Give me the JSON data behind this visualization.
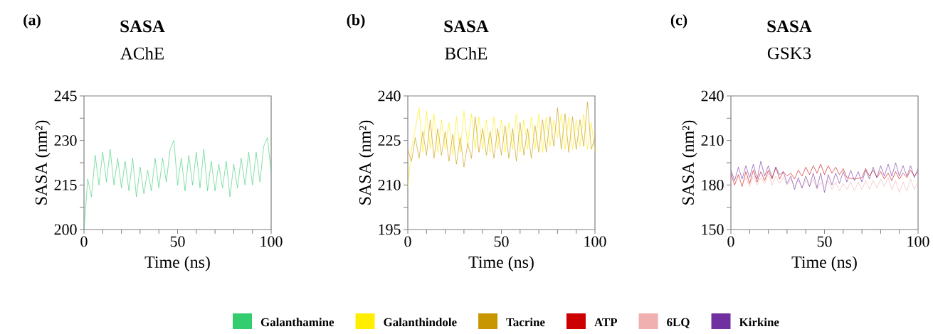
{
  "chart_data": [
    {
      "type": "line",
      "title": "SASA",
      "subtitle": "AChE",
      "annotations": [
        "(a)"
      ],
      "xlabel": "Time (ns)",
      "ylabel": "SASA (nm²)",
      "legend": "bottom",
      "x": [
        0,
        2,
        4,
        6,
        8,
        10,
        12,
        14,
        16,
        18,
        20,
        22,
        24,
        26,
        28,
        30,
        32,
        34,
        36,
        38,
        40,
        42,
        44,
        46,
        48,
        50,
        52,
        54,
        56,
        58,
        60,
        62,
        64,
        66,
        68,
        70,
        72,
        74,
        76,
        78,
        80,
        82,
        84,
        86,
        88,
        90,
        92,
        94,
        96,
        98,
        100
      ],
      "xlim": [
        0,
        100
      ],
      "ylim": [
        200,
        245
      ],
      "xticks": [
        0,
        {
          "value": 10,
          "label": null
        },
        {
          "value": 20,
          "label": null
        },
        {
          "value": 30,
          "label": null
        },
        {
          "value": 40,
          "label": null
        },
        50,
        {
          "value": 60,
          "label": null
        },
        {
          "value": 70,
          "label": null
        },
        {
          "value": 80,
          "label": null
        },
        {
          "value": 90,
          "label": null
        },
        100
      ],
      "yticks": [
        200,
        {
          "value": 207.5,
          "label": null
        },
        215,
        {
          "value": 222.5,
          "label": null
        },
        230,
        {
          "value": 237.5,
          "label": null
        },
        245
      ],
      "series": [
        {
          "name": "Galanthamine",
          "color": "#33cc6e",
          "values": [
            200,
            217,
            211,
            225,
            215,
            226,
            216,
            227,
            215,
            224,
            214,
            223,
            213,
            224,
            211,
            221,
            212,
            220,
            213,
            224,
            214,
            224,
            216,
            227,
            230,
            215,
            224,
            213,
            225,
            215,
            226,
            214,
            227,
            213,
            223,
            213,
            222,
            214,
            223,
            211,
            222,
            214,
            224,
            215,
            226,
            215,
            226,
            216,
            228,
            231,
            219
          ]
        }
      ]
    },
    {
      "type": "line",
      "title": "SASA",
      "subtitle": "BChE",
      "annotations": [
        "(b)"
      ],
      "xlabel": "Time (ns)",
      "ylabel": "SASA (nm²)",
      "legend": "bottom",
      "x": [
        0,
        2,
        4,
        6,
        8,
        10,
        12,
        14,
        16,
        18,
        20,
        22,
        24,
        26,
        28,
        30,
        32,
        34,
        36,
        38,
        40,
        42,
        44,
        46,
        48,
        50,
        52,
        54,
        56,
        58,
        60,
        62,
        64,
        66,
        68,
        70,
        72,
        74,
        76,
        78,
        80,
        82,
        84,
        86,
        88,
        90,
        92,
        94,
        96,
        98,
        100
      ],
      "xlim": [
        0,
        100
      ],
      "ylim": [
        195,
        240
      ],
      "xticks": [
        0,
        {
          "value": 10,
          "label": null
        },
        {
          "value": 20,
          "label": null
        },
        {
          "value": 30,
          "label": null
        },
        {
          "value": 40,
          "label": null
        },
        50,
        {
          "value": 60,
          "label": null
        },
        {
          "value": 70,
          "label": null
        },
        {
          "value": 80,
          "label": null
        },
        {
          "value": 90,
          "label": null
        },
        100
      ],
      "yticks": [
        195,
        {
          "value": 202.5,
          "label": null
        },
        210,
        {
          "value": 217.5,
          "label": null
        },
        225,
        {
          "value": 232.5,
          "label": null
        },
        240
      ],
      "series": [
        {
          "name": "Galanthindole",
          "color": "#ffee00",
          "values": [
            209,
            222,
            229,
            236,
            221,
            235,
            222,
            234,
            221,
            232,
            222,
            231,
            220,
            233,
            221,
            235,
            223,
            234,
            222,
            233,
            222,
            232,
            221,
            233,
            222,
            232,
            221,
            231,
            222,
            234,
            221,
            232,
            222,
            233,
            222,
            234,
            221,
            233,
            223,
            232,
            226,
            234,
            222,
            233,
            222,
            232,
            223,
            234,
            222,
            231,
            221
          ]
        },
        {
          "name": "Tacrine",
          "color": "#c89600",
          "values": [
            222,
            218,
            226,
            219,
            228,
            220,
            232,
            219,
            229,
            220,
            228,
            218,
            227,
            217,
            226,
            216,
            224,
            219,
            233,
            221,
            229,
            220,
            228,
            219,
            229,
            220,
            230,
            219,
            229,
            218,
            231,
            220,
            229,
            219,
            230,
            221,
            232,
            221,
            233,
            223,
            236,
            222,
            234,
            221,
            233,
            222,
            232,
            223,
            238,
            222,
            226
          ]
        }
      ]
    },
    {
      "type": "line",
      "title": "SASA",
      "subtitle": "GSK3",
      "annotations": [
        "(c)"
      ],
      "xlabel": "Time (ns)",
      "ylabel": "SASA (nm²)",
      "legend": "bottom",
      "x": [
        0,
        2,
        4,
        6,
        8,
        10,
        12,
        14,
        16,
        18,
        20,
        22,
        24,
        26,
        28,
        30,
        32,
        34,
        36,
        38,
        40,
        42,
        44,
        46,
        48,
        50,
        52,
        54,
        56,
        58,
        60,
        62,
        64,
        66,
        68,
        70,
        72,
        74,
        76,
        78,
        80,
        82,
        84,
        86,
        88,
        90,
        92,
        94,
        96,
        98,
        100
      ],
      "xlim": [
        0,
        100
      ],
      "ylim": [
        150,
        240
      ],
      "xticks": [
        0,
        {
          "value": 10,
          "label": null
        },
        {
          "value": 20,
          "label": null
        },
        {
          "value": 30,
          "label": null
        },
        {
          "value": 40,
          "label": null
        },
        50,
        {
          "value": 60,
          "label": null
        },
        {
          "value": 70,
          "label": null
        },
        {
          "value": 80,
          "label": null
        },
        {
          "value": 90,
          "label": null
        },
        100
      ],
      "yticks": [
        150,
        {
          "value": 165,
          "label": null
        },
        180,
        {
          "value": 195,
          "label": null
        },
        210,
        {
          "value": 225,
          "label": null
        },
        240
      ],
      "series": [
        {
          "name": "ATP",
          "color": "#cc0000",
          "values": [
            188,
            180,
            187,
            179,
            189,
            181,
            190,
            182,
            189,
            183,
            190,
            184,
            192,
            184,
            189,
            186,
            188,
            184,
            190,
            186,
            192,
            187,
            193,
            188,
            194,
            187,
            193,
            188,
            192,
            187,
            191,
            185,
            null,
            184,
            null,
            185,
            191,
            186,
            190,
            185,
            189,
            184,
            188,
            183,
            189,
            184,
            188,
            185,
            190,
            186,
            189
          ]
        },
        {
          "name": "6LQ",
          "color": "#f0b0b0",
          "values": [
            185,
            181,
            186,
            180,
            185,
            179,
            186,
            180,
            185,
            181,
            188,
            180,
            186,
            181,
            185,
            180,
            184,
            179,
            183,
            178,
            183,
            179,
            184,
            177,
            182,
            178,
            183,
            177,
            182,
            176,
            181,
            177,
            182,
            176,
            182,
            177,
            183,
            177,
            183,
            178,
            184,
            179,
            185,
            177,
            183,
            175,
            182,
            176,
            184,
            177,
            182
          ]
        },
        {
          "name": "Kirkine",
          "color": "#7030a0",
          "values": [
            190,
            183,
            192,
            184,
            193,
            185,
            194,
            184,
            196,
            186,
            193,
            185,
            192,
            187,
            189,
            181,
            186,
            177,
            185,
            178,
            186,
            179,
            188,
            178,
            188,
            175,
            187,
            180,
            188,
            181,
            189,
            182,
            190,
            183,
            189,
            182,
            190,
            184,
            192,
            185,
            193,
            186,
            194,
            186,
            195,
            186,
            193,
            186,
            193,
            185,
            191
          ]
        }
      ]
    }
  ]
}
